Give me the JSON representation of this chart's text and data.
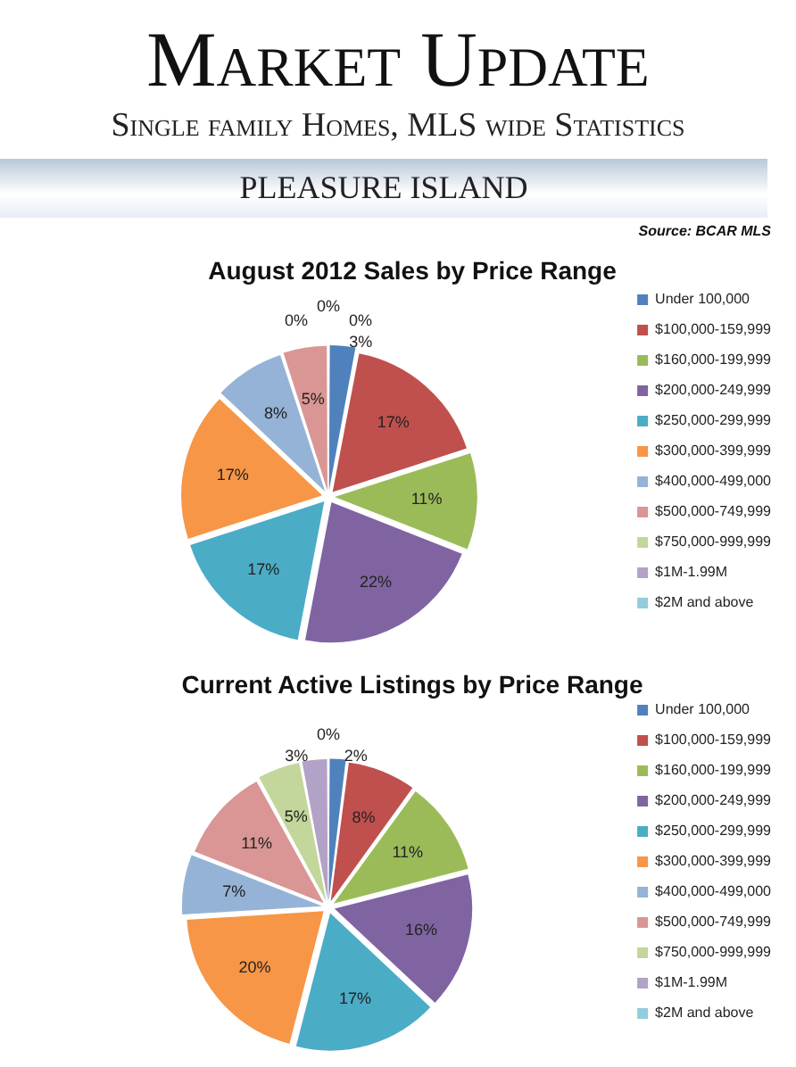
{
  "chart_data": [
    {
      "type": "pie",
      "title": "August 2012 Sales by Price Range",
      "annotations": [
        "Market Update",
        "Single family Homes, MLS wide Statistics",
        "PLEASURE ISLAND",
        "Source: BCAR MLS"
      ],
      "categories": [
        "Under 100,000",
        "$100,000-159,999",
        "$160,000-199,999",
        "$200,000-249,999",
        "$250,000-299,999",
        "$300,000-399,999",
        "$400,000-499,000",
        "$500,000-749,999",
        "$750,000-999,999",
        "$1M-1.99M",
        "$2M and above"
      ],
      "values": [
        3,
        17,
        11,
        22,
        17,
        17,
        8,
        5,
        0,
        0,
        0
      ],
      "value_labels": [
        "3%",
        "17%",
        "11%",
        "22%",
        "17%",
        "17%",
        "8%",
        "5%",
        "0%",
        "0%",
        "0%"
      ],
      "colors": [
        "#4f81bd",
        "#c0504d",
        "#9bbb59",
        "#8064a2",
        "#4bacc6",
        "#f79646",
        "#95b3d7",
        "#d99694",
        "#c3d69b",
        "#b3a2c7",
        "#93cddd"
      ],
      "legend": "right"
    },
    {
      "type": "pie",
      "title": "Current Active Listings by Price Range",
      "categories": [
        "Under 100,000",
        "$100,000-159,999",
        "$160,000-199,999",
        "$200,000-249,999",
        "$250,000-299,999",
        "$300,000-399,999",
        "$400,000-499,000",
        "$500,000-749,999",
        "$750,000-999,999",
        "$1M-1.99M",
        "$2M and above"
      ],
      "values": [
        2,
        8,
        11,
        16,
        17,
        20,
        7,
        11,
        5,
        3,
        0
      ],
      "value_labels": [
        "2%",
        "8%",
        "11%",
        "16%",
        "17%",
        "20%",
        "7%",
        "11%",
        "5%",
        "3%",
        "0%"
      ],
      "colors": [
        "#4f81bd",
        "#c0504d",
        "#9bbb59",
        "#8064a2",
        "#4bacc6",
        "#f79646",
        "#95b3d7",
        "#d99694",
        "#c3d69b",
        "#b3a2c7",
        "#93cddd"
      ],
      "legend": "right"
    }
  ]
}
